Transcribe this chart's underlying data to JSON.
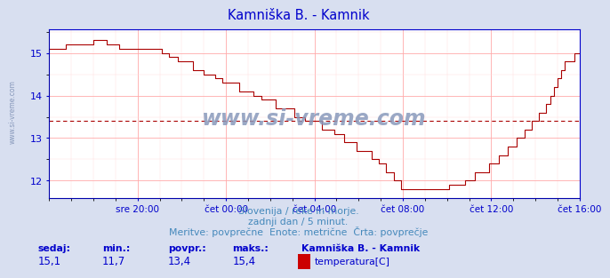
{
  "title": "Kamniška B. - Kamnik",
  "title_color": "#0000cc",
  "bg_color": "#d8dff0",
  "plot_bg_color": "#ffffff",
  "line_color": "#aa0000",
  "grid_color_major": "#ffaaaa",
  "grid_color_minor": "#ffdddd",
  "axis_color": "#0000cc",
  "avg_line_color": "#aa0000",
  "avg_value": 13.4,
  "ylim_min": 11.7,
  "ylim_max": 15.55,
  "xlim_min": 0,
  "xlim_max": 288,
  "ylabel_values": [
    12,
    13,
    14,
    15
  ],
  "xticklabels": [
    "sre 20:00",
    "čet 00:00",
    "čet 04:00",
    "čet 08:00",
    "čet 12:00",
    "čet 16:00"
  ],
  "xtick_positions": [
    48,
    96,
    144,
    192,
    240,
    288
  ],
  "footer_line1": "Slovenija / reke in morje.",
  "footer_line2": "zadnji dan / 5 minut.",
  "footer_line3": "Meritve: povprečne  Enote: metrične  Črta: povprečje",
  "footer_color": "#4488bb",
  "stats_labels": [
    "sedaj:",
    "min.:",
    "povpr.:",
    "maks.:"
  ],
  "stats_values": [
    "15,1",
    "11,7",
    "13,4",
    "15,4"
  ],
  "stats_color": "#0000cc",
  "legend_label": "Kamniška B. - Kamnik",
  "legend_series": "temperatura[C]",
  "legend_color": "#cc0000",
  "watermark": "www.si-vreme.com",
  "watermark_color": "#8899bb",
  "left_label": "www.si-vreme.com",
  "left_label_color": "#8899bb"
}
